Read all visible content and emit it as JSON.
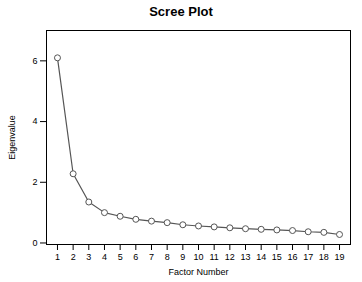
{
  "chart_data": {
    "type": "line",
    "title": "Scree Plot",
    "xlabel": "Factor Number",
    "ylabel": "Eigenvalue",
    "x": [
      1,
      2,
      3,
      4,
      5,
      6,
      7,
      8,
      9,
      10,
      11,
      12,
      13,
      14,
      15,
      16,
      17,
      18,
      19
    ],
    "values": [
      6.1,
      2.28,
      1.35,
      1.0,
      0.88,
      0.78,
      0.72,
      0.67,
      0.6,
      0.56,
      0.53,
      0.5,
      0.47,
      0.45,
      0.43,
      0.41,
      0.37,
      0.35,
      0.28
    ],
    "color": "#555555",
    "marker": "circle",
    "xlim": [
      0.3,
      19.7
    ],
    "ylim": [
      -0.05,
      7.0
    ],
    "xticks": [
      1,
      2,
      3,
      4,
      5,
      6,
      7,
      8,
      9,
      10,
      11,
      12,
      13,
      14,
      15,
      16,
      17,
      18,
      19
    ],
    "yticks": [
      0,
      2,
      4,
      6
    ],
    "grid": false
  }
}
